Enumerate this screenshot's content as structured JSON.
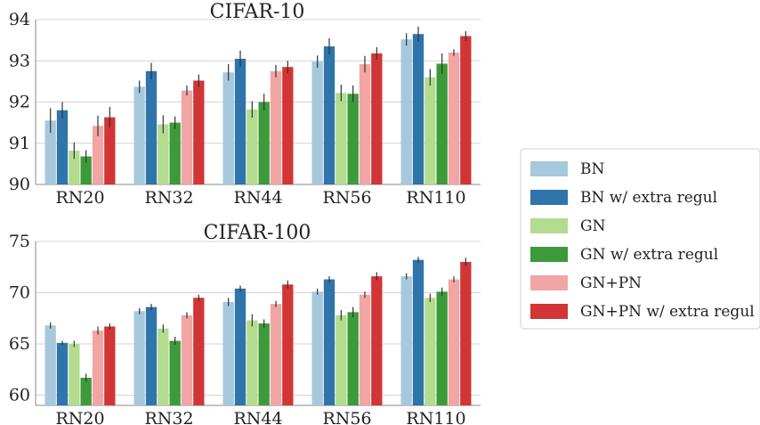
{
  "chart_data": [
    {
      "type": "bar",
      "title": "CIFAR-10",
      "categories": [
        "RN20",
        "RN32",
        "RN44",
        "RN56",
        "RN110"
      ],
      "ylim": [
        90,
        94
      ],
      "yticks": [
        90,
        91,
        92,
        93,
        94
      ],
      "grid": true,
      "series": [
        {
          "name": "BN",
          "color": "#a6c8dc",
          "values": [
            91.55,
            92.37,
            92.72,
            92.98,
            93.52
          ],
          "err": [
            0.3,
            0.15,
            0.2,
            0.15,
            0.15
          ]
        },
        {
          "name": "BN w/ extra regul",
          "color": "#2f74aa",
          "values": [
            91.8,
            92.75,
            93.05,
            93.35,
            93.65
          ],
          "err": [
            0.2,
            0.2,
            0.2,
            0.2,
            0.18
          ]
        },
        {
          "name": "GN",
          "color": "#b3dc8e",
          "values": [
            90.82,
            91.46,
            91.82,
            92.22,
            92.6
          ],
          "err": [
            0.2,
            0.22,
            0.2,
            0.2,
            0.2
          ]
        },
        {
          "name": "GN w/ extra regul",
          "color": "#3d9a3a",
          "values": [
            90.68,
            91.5,
            92.0,
            92.2,
            92.93
          ],
          "err": [
            0.15,
            0.15,
            0.2,
            0.2,
            0.25
          ]
        },
        {
          "name": "GN+PN",
          "color": "#f1a5a4",
          "values": [
            91.42,
            92.28,
            92.75,
            92.92,
            93.2
          ],
          "err": [
            0.25,
            0.12,
            0.15,
            0.2,
            0.08
          ]
        },
        {
          "name": "GN+PN w/ extra regul",
          "color": "#d13535",
          "values": [
            91.63,
            92.52,
            92.85,
            93.18,
            93.6
          ],
          "err": [
            0.25,
            0.15,
            0.15,
            0.15,
            0.12
          ]
        }
      ]
    },
    {
      "type": "bar",
      "title": "CIFAR-100",
      "categories": [
        "RN20",
        "RN32",
        "RN44",
        "RN56",
        "RN110"
      ],
      "ylim": [
        59,
        75
      ],
      "yticks": [
        60,
        65,
        70,
        75
      ],
      "grid": true,
      "series": [
        {
          "name": "BN",
          "color": "#a6c8dc",
          "values": [
            66.8,
            68.2,
            69.1,
            70.1,
            71.6
          ],
          "err": [
            0.3,
            0.3,
            0.4,
            0.3,
            0.3
          ]
        },
        {
          "name": "BN w/ extra regul",
          "color": "#2f74aa",
          "values": [
            65.1,
            68.6,
            70.4,
            71.3,
            73.2
          ],
          "err": [
            0.2,
            0.3,
            0.3,
            0.3,
            0.3
          ]
        },
        {
          "name": "GN",
          "color": "#b3dc8e",
          "values": [
            65.0,
            66.5,
            67.3,
            67.8,
            69.5
          ],
          "err": [
            0.3,
            0.4,
            0.6,
            0.5,
            0.4
          ]
        },
        {
          "name": "GN w/ extra regul",
          "color": "#3d9a3a",
          "values": [
            61.7,
            65.3,
            67.0,
            68.1,
            70.1
          ],
          "err": [
            0.4,
            0.4,
            0.4,
            0.5,
            0.4
          ]
        },
        {
          "name": "GN+PN",
          "color": "#f1a5a4",
          "values": [
            66.3,
            67.8,
            68.9,
            69.8,
            71.3
          ],
          "err": [
            0.4,
            0.3,
            0.3,
            0.3,
            0.3
          ]
        },
        {
          "name": "GN+PN w/ extra regul",
          "color": "#d13535",
          "values": [
            66.7,
            69.5,
            70.8,
            71.6,
            73.0
          ],
          "err": [
            0.3,
            0.3,
            0.4,
            0.4,
            0.4
          ]
        }
      ]
    }
  ],
  "legend": {
    "placement": "right",
    "items": [
      {
        "label": "BN",
        "color": "#a6c8dc"
      },
      {
        "label": "BN w/ extra regul",
        "color": "#2f74aa"
      },
      {
        "label": "GN",
        "color": "#b3dc8e"
      },
      {
        "label": "GN w/ extra regul",
        "color": "#3d9a3a"
      },
      {
        "label": "GN+PN",
        "color": "#f1a5a4"
      },
      {
        "label": "GN+PN w/ extra regul",
        "color": "#d13535"
      }
    ]
  }
}
